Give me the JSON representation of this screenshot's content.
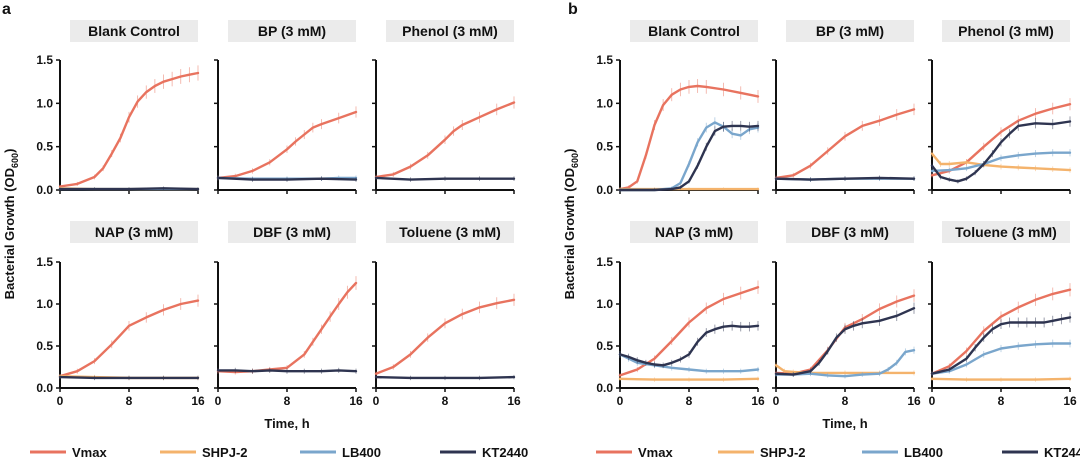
{
  "colors": {
    "Vmax": "#e8735f",
    "SHPJ-2": "#f4b36c",
    "LB400": "#7aa6cc",
    "KT2440": "#2e3450",
    "header_bg": "#ebebeb"
  },
  "shared": {
    "xlabel": "Time, h",
    "ylabel_main": "Bacterial Growth (OD",
    "ylabel_sub": "600",
    "ylabel_close": ")",
    "x_ticks": [
      "0",
      "8",
      "16"
    ],
    "y_ticks": [
      "0.0",
      "0.5",
      "1.0",
      "1.5"
    ],
    "xlim": [
      0,
      16
    ],
    "ylim": [
      0,
      1.5
    ]
  },
  "legend": [
    {
      "name": "Vmax",
      "color": "#e8735f"
    },
    {
      "name": "SHPJ-2",
      "color": "#f4b36c"
    },
    {
      "name": "LB400",
      "color": "#7aa6cc"
    },
    {
      "name": "KT2440",
      "color": "#2e3450"
    }
  ],
  "chart_data": [
    {
      "panel": "a",
      "type": "line",
      "title": "Blank Control",
      "series": [
        {
          "name": "Vmax",
          "x": [
            0,
            2,
            4,
            5,
            6,
            7,
            8,
            9,
            10,
            11,
            12,
            13,
            14,
            15,
            16
          ],
          "y": [
            0.04,
            0.07,
            0.15,
            0.25,
            0.42,
            0.6,
            0.84,
            1.02,
            1.13,
            1.2,
            1.25,
            1.28,
            1.31,
            1.33,
            1.35
          ]
        },
        {
          "name": "SHPJ-2",
          "x": [
            0,
            4,
            8,
            12,
            16
          ],
          "y": [
            0.02,
            0.01,
            0.01,
            0.01,
            0.01
          ]
        },
        {
          "name": "LB400",
          "x": [
            0,
            4,
            8,
            12,
            16
          ],
          "y": [
            0.01,
            0.01,
            0.01,
            0.01,
            0.01
          ]
        },
        {
          "name": "KT2440",
          "x": [
            0,
            4,
            8,
            12,
            16
          ],
          "y": [
            0.01,
            0.01,
            0.01,
            0.02,
            0.01
          ]
        }
      ]
    },
    {
      "panel": "a",
      "type": "line",
      "title": "BP (3 mM)",
      "series": [
        {
          "name": "Vmax",
          "x": [
            0,
            2,
            4,
            6,
            8,
            9,
            10,
            11,
            12,
            14,
            16
          ],
          "y": [
            0.14,
            0.16,
            0.22,
            0.32,
            0.47,
            0.56,
            0.64,
            0.72,
            0.76,
            0.83,
            0.9
          ]
        },
        {
          "name": "LB400",
          "x": [
            0,
            4,
            8,
            12,
            14,
            16
          ],
          "y": [
            0.14,
            0.13,
            0.13,
            0.13,
            0.14,
            0.14
          ]
        },
        {
          "name": "KT2440",
          "x": [
            0,
            4,
            8,
            12,
            16
          ],
          "y": [
            0.14,
            0.12,
            0.12,
            0.13,
            0.12
          ]
        }
      ]
    },
    {
      "panel": "a",
      "type": "line",
      "title": "Phenol (3 mM)",
      "series": [
        {
          "name": "Vmax",
          "x": [
            0,
            2,
            4,
            6,
            8,
            9,
            10,
            12,
            14,
            16
          ],
          "y": [
            0.15,
            0.18,
            0.27,
            0.4,
            0.58,
            0.68,
            0.75,
            0.84,
            0.93,
            1.01
          ]
        },
        {
          "name": "KT2440",
          "x": [
            0,
            4,
            8,
            12,
            16
          ],
          "y": [
            0.14,
            0.12,
            0.13,
            0.13,
            0.13
          ]
        }
      ]
    },
    {
      "panel": "a",
      "type": "line",
      "title": "NAP (3 mM)",
      "series": [
        {
          "name": "Vmax",
          "x": [
            0,
            2,
            4,
            6,
            8,
            10,
            12,
            14,
            16
          ],
          "y": [
            0.14,
            0.2,
            0.32,
            0.52,
            0.74,
            0.84,
            0.93,
            1.0,
            1.04
          ]
        },
        {
          "name": "SHPJ-2",
          "x": [
            0,
            4,
            8,
            12,
            16
          ],
          "y": [
            0.14,
            0.13,
            0.12,
            0.12,
            0.12
          ]
        },
        {
          "name": "KT2440",
          "x": [
            0,
            4,
            8,
            12,
            16
          ],
          "y": [
            0.13,
            0.12,
            0.12,
            0.12,
            0.12
          ]
        }
      ]
    },
    {
      "panel": "a",
      "type": "line",
      "title": "DBF (3 mM)",
      "series": [
        {
          "name": "Vmax",
          "x": [
            0,
            2,
            4,
            6,
            8,
            10,
            11,
            12,
            13,
            14,
            15,
            16
          ],
          "y": [
            0.2,
            0.19,
            0.2,
            0.22,
            0.24,
            0.4,
            0.55,
            0.7,
            0.85,
            1.0,
            1.14,
            1.25
          ]
        },
        {
          "name": "KT2440",
          "x": [
            0,
            2,
            4,
            6,
            8,
            10,
            12,
            14,
            16
          ],
          "y": [
            0.21,
            0.21,
            0.2,
            0.21,
            0.2,
            0.2,
            0.2,
            0.21,
            0.2
          ]
        }
      ]
    },
    {
      "panel": "a",
      "type": "line",
      "title": "Toluene (3 mM)",
      "series": [
        {
          "name": "Vmax",
          "x": [
            0,
            2,
            4,
            6,
            8,
            10,
            12,
            14,
            16
          ],
          "y": [
            0.17,
            0.25,
            0.4,
            0.6,
            0.77,
            0.88,
            0.96,
            1.01,
            1.05
          ]
        },
        {
          "name": "KT2440",
          "x": [
            0,
            4,
            8,
            12,
            16
          ],
          "y": [
            0.13,
            0.12,
            0.12,
            0.12,
            0.13
          ]
        }
      ]
    },
    {
      "panel": "b",
      "type": "line",
      "title": "Blank Control",
      "series": [
        {
          "name": "Vmax",
          "x": [
            0,
            1,
            2,
            3,
            4,
            5,
            6,
            7,
            8,
            9,
            10,
            12,
            14,
            16
          ],
          "y": [
            0.01,
            0.03,
            0.1,
            0.4,
            0.75,
            0.98,
            1.1,
            1.16,
            1.19,
            1.2,
            1.19,
            1.16,
            1.12,
            1.08
          ]
        },
        {
          "name": "SHPJ-2",
          "x": [
            0,
            4,
            8,
            12,
            16
          ],
          "y": [
            0.01,
            0.01,
            0.01,
            0.01,
            0.01
          ]
        },
        {
          "name": "LB400",
          "x": [
            0,
            4,
            6,
            7,
            8,
            9,
            10,
            11,
            12,
            13,
            14,
            15,
            16
          ],
          "y": [
            0.0,
            0.0,
            0.02,
            0.08,
            0.3,
            0.55,
            0.72,
            0.78,
            0.73,
            0.65,
            0.63,
            0.7,
            0.72
          ]
        },
        {
          "name": "KT2440",
          "x": [
            0,
            4,
            6,
            7,
            8,
            9,
            10,
            11,
            12,
            13,
            14,
            15,
            16
          ],
          "y": [
            0.0,
            0.0,
            0.01,
            0.03,
            0.1,
            0.28,
            0.5,
            0.68,
            0.73,
            0.74,
            0.74,
            0.73,
            0.74
          ]
        }
      ]
    },
    {
      "panel": "b",
      "type": "line",
      "title": "BP (3 mM)",
      "series": [
        {
          "name": "Vmax",
          "x": [
            0,
            2,
            4,
            6,
            8,
            10,
            12,
            14,
            16
          ],
          "y": [
            0.14,
            0.17,
            0.28,
            0.45,
            0.62,
            0.74,
            0.8,
            0.87,
            0.93
          ]
        },
        {
          "name": "LB400",
          "x": [
            0,
            4,
            8,
            12,
            16
          ],
          "y": [
            0.13,
            0.12,
            0.13,
            0.13,
            0.13
          ]
        },
        {
          "name": "KT2440",
          "x": [
            0,
            4,
            8,
            12,
            16
          ],
          "y": [
            0.13,
            0.12,
            0.13,
            0.14,
            0.13
          ]
        }
      ]
    },
    {
      "panel": "b",
      "type": "line",
      "title": "Phenol (3 mM)",
      "series": [
        {
          "name": "Vmax",
          "x": [
            0,
            2,
            4,
            6,
            8,
            10,
            12,
            14,
            16
          ],
          "y": [
            0.17,
            0.22,
            0.32,
            0.5,
            0.67,
            0.8,
            0.88,
            0.94,
            0.99
          ]
        },
        {
          "name": "SHPJ-2",
          "x": [
            0,
            1,
            2,
            4,
            6,
            8,
            10,
            12,
            14,
            16
          ],
          "y": [
            0.42,
            0.3,
            0.3,
            0.32,
            0.29,
            0.27,
            0.26,
            0.25,
            0.24,
            0.23
          ]
        },
        {
          "name": "LB400",
          "x": [
            0,
            2,
            4,
            6,
            8,
            10,
            12,
            14,
            16
          ],
          "y": [
            0.22,
            0.23,
            0.25,
            0.3,
            0.37,
            0.4,
            0.42,
            0.43,
            0.43
          ]
        },
        {
          "name": "KT2440",
          "x": [
            0,
            1,
            2,
            3,
            4,
            5,
            6,
            7,
            8,
            9,
            10,
            12,
            14,
            16
          ],
          "y": [
            0.28,
            0.15,
            0.12,
            0.1,
            0.13,
            0.2,
            0.3,
            0.42,
            0.55,
            0.65,
            0.74,
            0.77,
            0.76,
            0.79
          ]
        }
      ]
    },
    {
      "panel": "b",
      "type": "line",
      "title": "NAP (3 mM)",
      "series": [
        {
          "name": "Vmax",
          "x": [
            0,
            2,
            4,
            6,
            8,
            10,
            12,
            14,
            16
          ],
          "y": [
            0.15,
            0.22,
            0.35,
            0.56,
            0.78,
            0.95,
            1.06,
            1.13,
            1.2
          ]
        },
        {
          "name": "SHPJ-2",
          "x": [
            0,
            4,
            8,
            12,
            16
          ],
          "y": [
            0.11,
            0.1,
            0.1,
            0.1,
            0.11
          ]
        },
        {
          "name": "LB400",
          "x": [
            0,
            1,
            2,
            4,
            6,
            8,
            10,
            12,
            14,
            16
          ],
          "y": [
            0.4,
            0.35,
            0.3,
            0.27,
            0.24,
            0.22,
            0.2,
            0.2,
            0.2,
            0.22
          ]
        },
        {
          "name": "KT2440",
          "x": [
            0,
            1,
            2,
            3,
            4,
            5,
            6,
            7,
            8,
            9,
            10,
            11,
            12,
            13,
            14,
            15,
            16
          ],
          "y": [
            0.4,
            0.37,
            0.33,
            0.3,
            0.28,
            0.27,
            0.3,
            0.34,
            0.4,
            0.55,
            0.66,
            0.7,
            0.73,
            0.74,
            0.73,
            0.73,
            0.74
          ]
        }
      ]
    },
    {
      "panel": "b",
      "type": "line",
      "title": "DBF (3 mM)",
      "series": [
        {
          "name": "Vmax",
          "x": [
            0,
            2,
            4,
            6,
            8,
            10,
            12,
            14,
            16
          ],
          "y": [
            0.18,
            0.17,
            0.22,
            0.45,
            0.72,
            0.82,
            0.94,
            1.03,
            1.1
          ]
        },
        {
          "name": "SHPJ-2",
          "x": [
            0,
            1,
            2,
            4,
            8,
            12,
            16
          ],
          "y": [
            0.27,
            0.2,
            0.19,
            0.18,
            0.18,
            0.18,
            0.18
          ]
        },
        {
          "name": "LB400",
          "x": [
            0,
            2,
            4,
            6,
            8,
            10,
            12,
            13,
            14,
            15,
            16
          ],
          "y": [
            0.16,
            0.16,
            0.17,
            0.15,
            0.14,
            0.16,
            0.17,
            0.22,
            0.3,
            0.43,
            0.45
          ]
        },
        {
          "name": "KT2440",
          "x": [
            0,
            2,
            4,
            5,
            6,
            7,
            8,
            9,
            10,
            12,
            14,
            16
          ],
          "y": [
            0.17,
            0.16,
            0.2,
            0.3,
            0.44,
            0.6,
            0.7,
            0.74,
            0.77,
            0.8,
            0.86,
            0.95
          ]
        }
      ]
    },
    {
      "panel": "b",
      "type": "line",
      "title": "Toluene (3 mM)",
      "series": [
        {
          "name": "Vmax",
          "x": [
            0,
            2,
            4,
            6,
            8,
            10,
            12,
            14,
            16
          ],
          "y": [
            0.17,
            0.26,
            0.44,
            0.68,
            0.85,
            0.96,
            1.05,
            1.12,
            1.17
          ]
        },
        {
          "name": "SHPJ-2",
          "x": [
            0,
            4,
            8,
            12,
            16
          ],
          "y": [
            0.11,
            0.1,
            0.1,
            0.1,
            0.11
          ]
        },
        {
          "name": "LB400",
          "x": [
            0,
            2,
            4,
            6,
            8,
            10,
            12,
            14,
            16
          ],
          "y": [
            0.17,
            0.2,
            0.28,
            0.4,
            0.47,
            0.5,
            0.52,
            0.53,
            0.53
          ]
        },
        {
          "name": "KT2440",
          "x": [
            0,
            2,
            4,
            5,
            6,
            7,
            8,
            9,
            10,
            11,
            12,
            13,
            14,
            15,
            16
          ],
          "y": [
            0.17,
            0.22,
            0.35,
            0.48,
            0.6,
            0.7,
            0.76,
            0.78,
            0.78,
            0.78,
            0.78,
            0.78,
            0.8,
            0.82,
            0.84
          ]
        }
      ]
    }
  ]
}
